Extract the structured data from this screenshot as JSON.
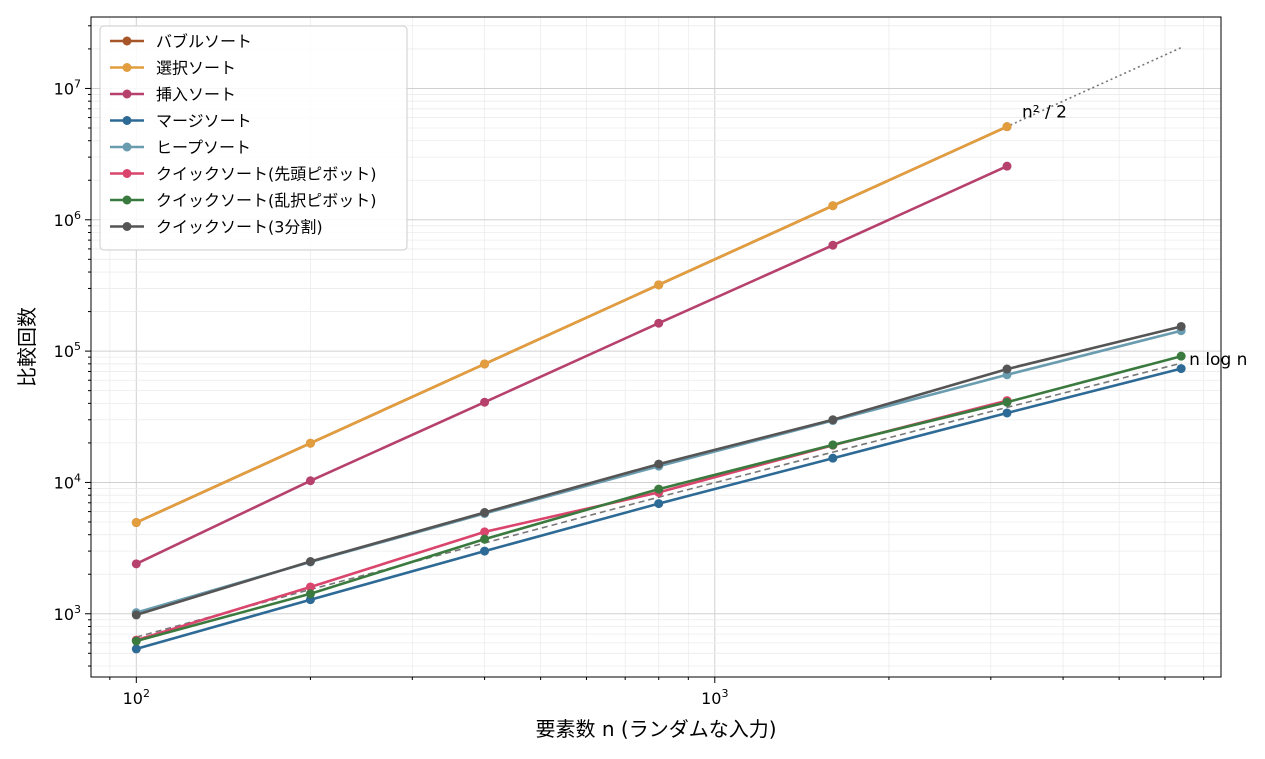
{
  "chart_data": {
    "type": "line",
    "title": "",
    "xlabel": "要素数 n (ランダムな入力)",
    "ylabel": "比較回数",
    "xscale": "log",
    "yscale": "log",
    "xlim": [
      83.5,
      7500
    ],
    "ylim": [
      330,
      35000000
    ],
    "grid": true,
    "legend_position": "top-left",
    "x_ticks": [
      {
        "base": "10",
        "exp": "2",
        "value": 100
      },
      {
        "base": "10",
        "exp": "3",
        "value": 1000
      }
    ],
    "y_ticks": [
      {
        "base": "10",
        "exp": "3",
        "value": 1000
      },
      {
        "base": "10",
        "exp": "4",
        "value": 10000
      },
      {
        "base": "10",
        "exp": "5",
        "value": 100000
      },
      {
        "base": "10",
        "exp": "6",
        "value": 1000000
      },
      {
        "base": "10",
        "exp": "7",
        "value": 10000000
      }
    ],
    "series": [
      {
        "name": "バブルソート",
        "color": "#a65628",
        "x": [
          100,
          200,
          400,
          800,
          1600,
          3200
        ],
        "values": [
          4950,
          19900,
          79800,
          319600,
          1279200,
          5118400
        ]
      },
      {
        "name": "選択ソート",
        "color": "#e29d3e",
        "x": [
          100,
          200,
          400,
          800,
          1600,
          3200
        ],
        "values": [
          4950,
          19900,
          79800,
          319600,
          1279200,
          5118400
        ]
      },
      {
        "name": "挿入ソート",
        "color": "#b6416d",
        "x": [
          100,
          200,
          400,
          800,
          1600,
          3200
        ],
        "values": [
          2400,
          10300,
          40800,
          163000,
          640000,
          2560000
        ]
      },
      {
        "name": "マージソート",
        "color": "#2e6a96",
        "x": [
          100,
          200,
          400,
          800,
          1600,
          3200,
          6400
        ],
        "values": [
          540,
          1280,
          3000,
          6900,
          15300,
          33800,
          73600
        ]
      },
      {
        "name": "ヒープソート",
        "color": "#6a9cb0",
        "x": [
          100,
          200,
          400,
          800,
          1600,
          3200,
          6400
        ],
        "values": [
          1020,
          2480,
          5800,
          13300,
          29600,
          66000,
          143000
        ]
      },
      {
        "name": "クイックソート(先頭ピボット)",
        "color": "#d9456d",
        "x": [
          100,
          200,
          400,
          800,
          1600,
          3200
        ],
        "values": [
          630,
          1600,
          4200,
          8400,
          19200,
          42000
        ]
      },
      {
        "name": "クイックソート(乱択ピボット)",
        "color": "#3b7a3e",
        "x": [
          100,
          200,
          400,
          800,
          1600,
          3200,
          6400
        ],
        "values": [
          620,
          1420,
          3700,
          8900,
          19300,
          40800,
          91500
        ]
      },
      {
        "name": "クイックソート(3分割)",
        "color": "#555555",
        "x": [
          100,
          200,
          400,
          800,
          1600,
          3200,
          6400
        ],
        "values": [
          980,
          2500,
          5900,
          13800,
          30000,
          73000,
          154000
        ]
      }
    ],
    "reference_lines": [
      {
        "label": "n² / 2",
        "style": "dotted",
        "color": "#777777",
        "x": [
          100,
          200,
          400,
          800,
          1600,
          3200,
          6400
        ],
        "values": [
          5000,
          20000,
          80000,
          320000,
          1280000,
          5120000,
          20480000
        ]
      },
      {
        "label": "n log n",
        "style": "dashed",
        "color": "#777777",
        "x": [
          100,
          200,
          400,
          800,
          1600,
          3200,
          6400
        ],
        "values": [
          664,
          1529,
          3458,
          7715,
          17030,
          37260,
          80950
        ]
      }
    ]
  }
}
